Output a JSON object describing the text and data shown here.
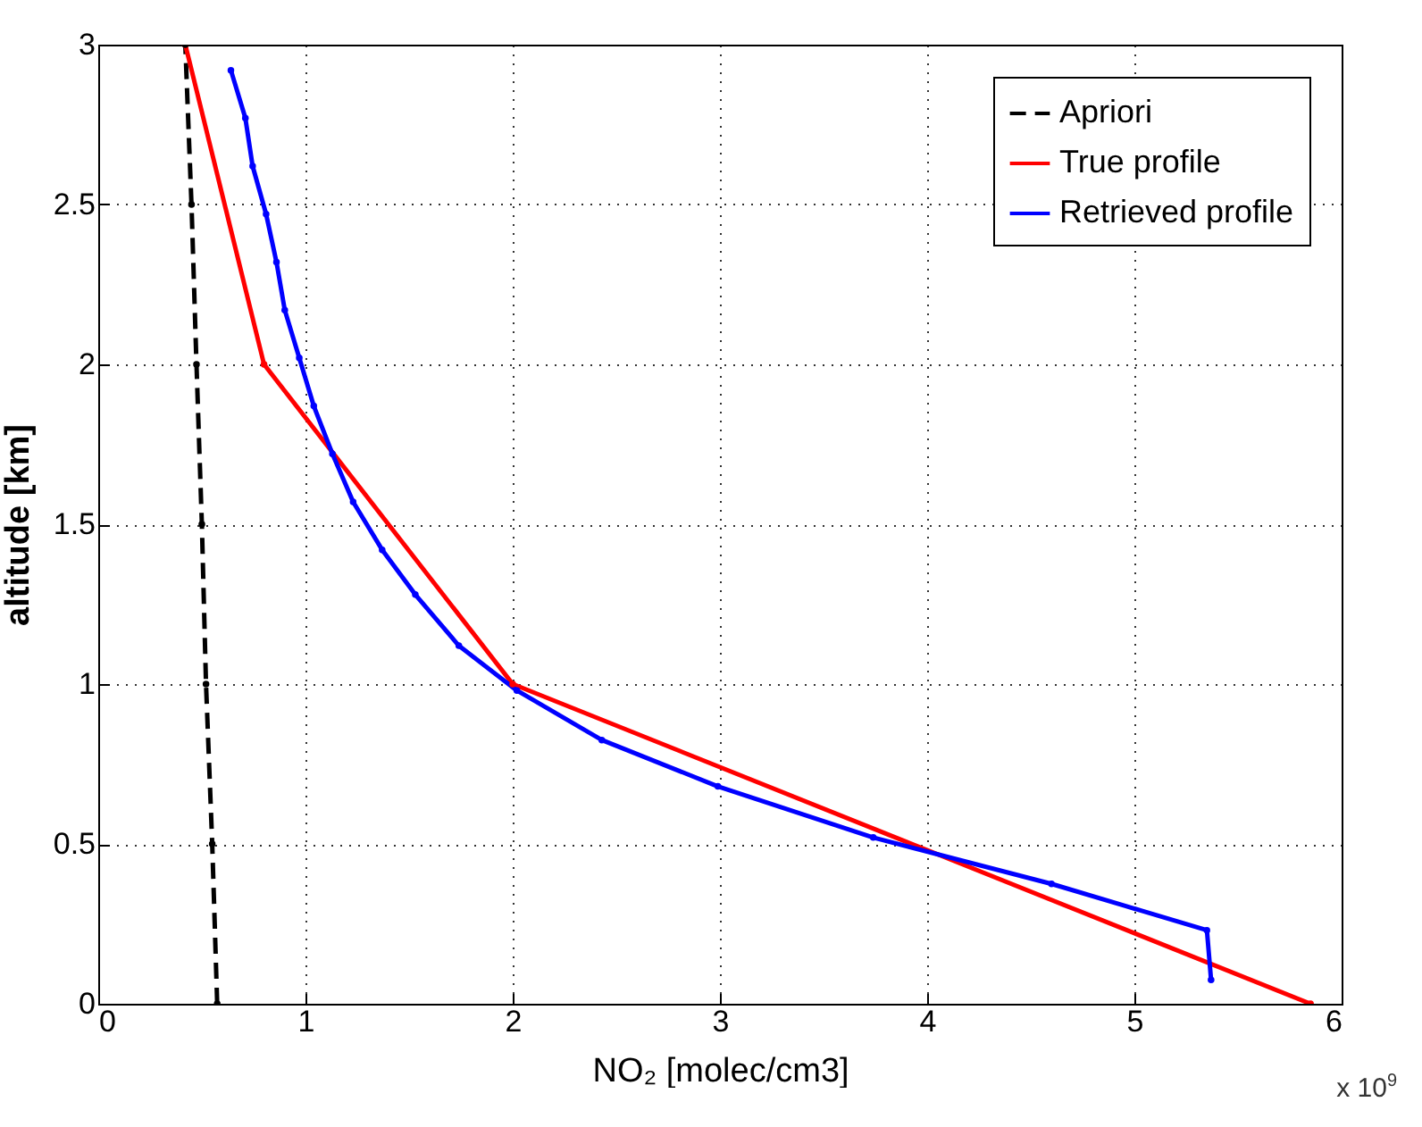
{
  "chart_data": {
    "type": "line",
    "xlabel": "NO₂ [molec/cm3]",
    "ylabel": "altitude [km]",
    "xlim": [
      0,
      6
    ],
    "xticks": [
      0,
      1,
      2,
      3,
      4,
      5,
      6
    ],
    "ylim": [
      0,
      3
    ],
    "yticks": [
      0,
      0.5,
      1,
      1.5,
      2,
      2.5,
      3
    ],
    "grid": true,
    "legend": "top right",
    "marker": "circle",
    "annotations": [
      "x 10$^{9}$"
    ],
    "series": [
      {
        "name": "Apriori",
        "color": "#000000",
        "line_style": "dashed",
        "x": [
          0.574,
          0.55,
          0.52,
          0.5,
          0.474,
          0.45,
          0.42
        ],
        "values": [
          0,
          0.5,
          1,
          1.5,
          2,
          2.5,
          3
        ]
      },
      {
        "name": "True profile",
        "color": "#ff0000",
        "line_style": "solid",
        "x": [
          5.85,
          2.0,
          0.8,
          0.42
        ],
        "values": [
          0,
          1,
          2,
          3
        ]
      },
      {
        "name": "Retrieved profile",
        "color": "#0000ff",
        "line_style": "solid",
        "x": [
          5.37,
          5.35,
          4.6,
          3.74,
          2.99,
          2.43,
          2.02,
          1.74,
          1.53,
          1.37,
          1.23,
          1.13,
          1.04,
          0.97,
          0.9,
          0.86,
          0.81,
          0.745,
          0.71,
          0.64
        ],
        "values": [
          0.075,
          0.23,
          0.375,
          0.52,
          0.68,
          0.825,
          0.98,
          1.12,
          1.28,
          1.42,
          1.57,
          1.72,
          1.87,
          2.02,
          2.17,
          2.32,
          2.47,
          2.62,
          2.77,
          2.92
        ]
      }
    ]
  }
}
